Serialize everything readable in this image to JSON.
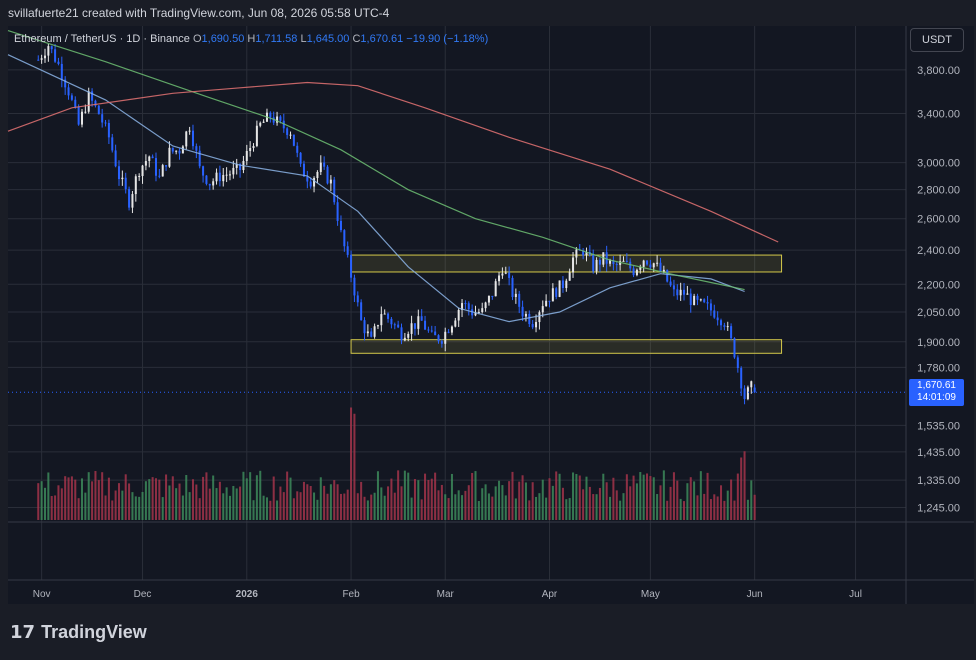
{
  "header": {
    "credit": "svillafuerte21 created with TradingView.com, Jun 08, 2026 05:58 UTC-4"
  },
  "symbol": {
    "name": "Ethereum / TetherUS · 1D · Binance",
    "open_label": "O",
    "open": "1,690.50",
    "high_label": "H",
    "high": "1,711.58",
    "low_label": "L",
    "low": "1,645.00",
    "close_label": "C",
    "close": "1,670.61",
    "change": "−19.90 (−1.18%)"
  },
  "currency_button": "USDT",
  "last_price": {
    "price": "1,670.61",
    "countdown": "14:01:09",
    "value": 1670.61
  },
  "footer": {
    "brand": "TradingView"
  },
  "colors": {
    "up": "#e6e6e6",
    "down": "#2962ff",
    "vol_up": "#3d8a5a",
    "vol_down": "#a3344a",
    "ma_short": "#8cb4e6",
    "ma_mid": "#6fbf73",
    "ma_long": "#e57373",
    "zone": "#d4c84a"
  },
  "chart_data": {
    "type": "candlestick",
    "scale": "log",
    "ylim": [
      1200,
      4250
    ],
    "y_ticks": [
      "3,800.00",
      "3,400.00",
      "3,000.00",
      "2,800.00",
      "2,600.00",
      "2,400.00",
      "2,200.00",
      "2,050.00",
      "1,900.00",
      "1,780.00",
      "1,535.00",
      "1,435.00",
      "1,335.00",
      "1,245.00"
    ],
    "y_tick_values": [
      3800,
      3400,
      3000,
      2800,
      2600,
      2400,
      2200,
      2050,
      1900,
      1780,
      1535,
      1435,
      1335,
      1245
    ],
    "x_labels": [
      "Nov",
      "Dec",
      "2026",
      "Feb",
      "Mar",
      "Apr",
      "May",
      "Jun",
      "Jul"
    ],
    "x_label_days": [
      1,
      31,
      62,
      93,
      121,
      152,
      182,
      213,
      243
    ],
    "x_range_days": [
      -9,
      258
    ],
    "ohlc_anchors": [
      [
        0,
        3900
      ],
      [
        3,
        4050
      ],
      [
        6,
        3850
      ],
      [
        9,
        3600
      ],
      [
        12,
        3300
      ],
      [
        15,
        3550
      ],
      [
        18,
        3400
      ],
      [
        21,
        3200
      ],
      [
        24,
        2900
      ],
      [
        27,
        2720
      ],
      [
        30,
        2950
      ],
      [
        33,
        3050
      ],
      [
        36,
        2880
      ],
      [
        39,
        3080
      ],
      [
        42,
        3100
      ],
      [
        45,
        3300
      ],
      [
        48,
        2950
      ],
      [
        51,
        2850
      ],
      [
        54,
        2900
      ],
      [
        57,
        2920
      ],
      [
        60,
        2950
      ],
      [
        63,
        3120
      ],
      [
        66,
        3300
      ],
      [
        69,
        3380
      ],
      [
        72,
        3300
      ],
      [
        75,
        3250
      ],
      [
        78,
        2950
      ],
      [
        81,
        2870
      ],
      [
        84,
        2960
      ],
      [
        87,
        2850
      ],
      [
        90,
        2500
      ],
      [
        93,
        2250
      ],
      [
        96,
        2000
      ],
      [
        99,
        1900
      ],
      [
        102,
        2050
      ],
      [
        105,
        2000
      ],
      [
        108,
        1940
      ],
      [
        111,
        1980
      ],
      [
        114,
        2000
      ],
      [
        117,
        1920
      ],
      [
        120,
        1920
      ],
      [
        123,
        2000
      ],
      [
        126,
        2100
      ],
      [
        129,
        2050
      ],
      [
        132,
        2050
      ],
      [
        135,
        2150
      ],
      [
        138,
        2300
      ],
      [
        141,
        2150
      ],
      [
        144,
        2050
      ],
      [
        147,
        2000
      ],
      [
        150,
        2100
      ],
      [
        153,
        2150
      ],
      [
        156,
        2200
      ],
      [
        159,
        2350
      ],
      [
        162,
        2400
      ],
      [
        165,
        2300
      ],
      [
        168,
        2350
      ],
      [
        171,
        2300
      ],
      [
        174,
        2320
      ],
      [
        177,
        2280
      ],
      [
        180,
        2350
      ],
      [
        183,
        2320
      ],
      [
        186,
        2250
      ],
      [
        189,
        2150
      ],
      [
        192,
        2150
      ],
      [
        195,
        2100
      ],
      [
        198,
        2080
      ],
      [
        201,
        2050
      ],
      [
        204,
        2000
      ],
      [
        207,
        1850
      ],
      [
        210,
        1650
      ],
      [
        212,
        1690
      ],
      [
        213,
        1671
      ]
    ],
    "volume_spikes": {
      "93": 0.9,
      "94": 0.85,
      "209": 0.5,
      "210": 0.55
    },
    "moving_averages": [
      {
        "points": [
          [
            -9,
            3950
          ],
          [
            20,
            3520
          ],
          [
            40,
            3130
          ],
          [
            60,
            2980
          ],
          [
            80,
            2900
          ],
          [
            95,
            2650
          ],
          [
            110,
            2300
          ],
          [
            125,
            2070
          ],
          [
            140,
            2000
          ],
          [
            155,
            2050
          ],
          [
            170,
            2180
          ],
          [
            185,
            2260
          ],
          [
            200,
            2230
          ],
          [
            210,
            2160
          ]
        ]
      },
      {
        "points": [
          [
            -9,
            4200
          ],
          [
            20,
            3880
          ],
          [
            50,
            3550
          ],
          [
            70,
            3350
          ],
          [
            90,
            3100
          ],
          [
            110,
            2800
          ],
          [
            130,
            2600
          ],
          [
            150,
            2480
          ],
          [
            170,
            2340
          ],
          [
            190,
            2250
          ],
          [
            200,
            2210
          ],
          [
            210,
            2170
          ]
        ]
      },
      {
        "points": [
          [
            -9,
            3250
          ],
          [
            10,
            3450
          ],
          [
            40,
            3580
          ],
          [
            60,
            3630
          ],
          [
            80,
            3680
          ],
          [
            95,
            3650
          ],
          [
            115,
            3450
          ],
          [
            140,
            3200
          ],
          [
            170,
            2950
          ],
          [
            200,
            2650
          ],
          [
            220,
            2450
          ]
        ]
      }
    ],
    "zones": [
      {
        "from_day": 93,
        "to_day": 221,
        "low": 2270,
        "high": 2370
      },
      {
        "from_day": 93,
        "to_day": 221,
        "low": 1845,
        "high": 1910
      }
    ],
    "last_day": 213
  }
}
